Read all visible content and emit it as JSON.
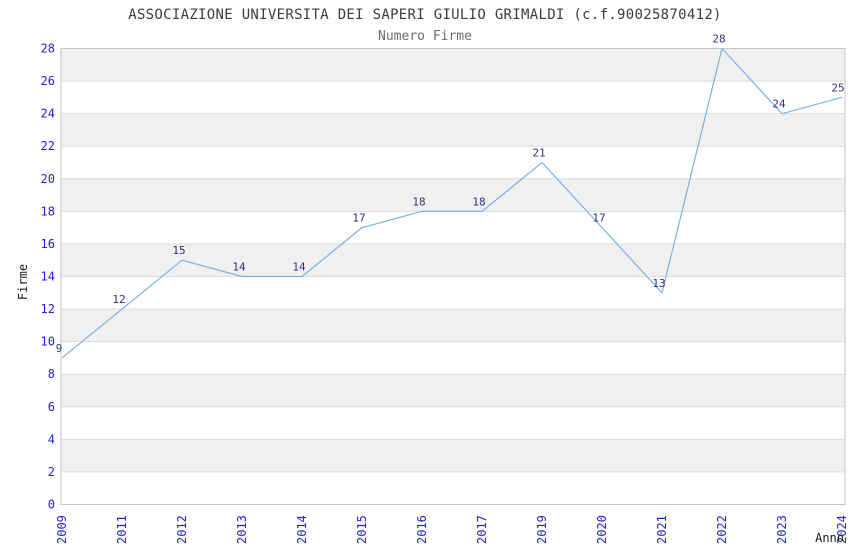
{
  "page": {
    "background": "#ffffff"
  },
  "chart_data": {
    "type": "line",
    "title": "ASSOCIAZIONE UNIVERSITA DEI SAPERI GIULIO GRIMALDI (c.f.90025870412)",
    "subtitle": "Numero Firme",
    "xlabel": "Anno",
    "ylabel": "Firme",
    "categories": [
      "2009",
      "2011",
      "2012",
      "2013",
      "2014",
      "2015",
      "2016",
      "2017",
      "2019",
      "2020",
      "2021",
      "2022",
      "2023",
      "2024"
    ],
    "values": [
      9,
      12,
      15,
      14,
      14,
      17,
      18,
      18,
      21,
      17,
      13,
      28,
      24,
      25
    ],
    "ylim": [
      0,
      28
    ],
    "ytick_step": 2,
    "grid": "horizontal",
    "band_fill": "alternating",
    "legend_position": "none",
    "point_labels_visible": true,
    "colors": {
      "line": "#7cb0e8",
      "tick_labels": "#2323cf",
      "point_labels": "#32327a",
      "title": "#3c3c3c",
      "subtitle": "#6f6f6f",
      "axis_titles": "#1a1a1a",
      "band": "#f0f0f0",
      "gridline": "#dcdcdc",
      "border": "#c6c6c6",
      "background": "#ffffff"
    }
  }
}
